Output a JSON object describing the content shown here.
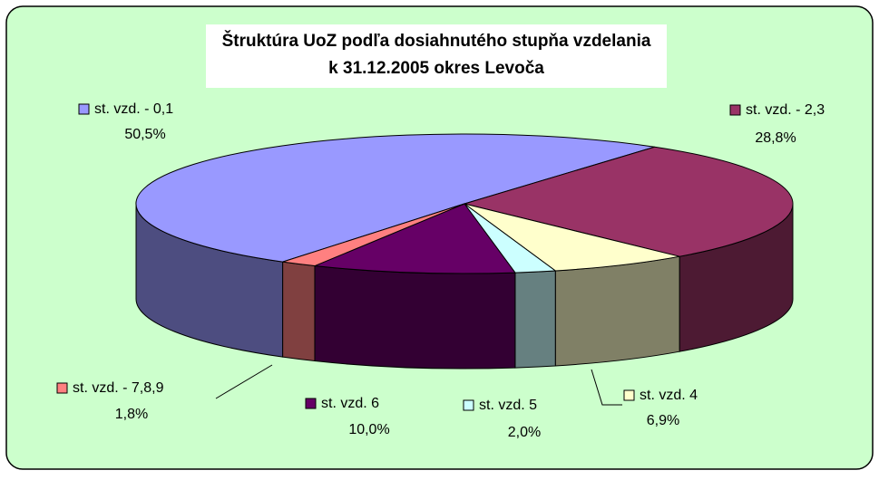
{
  "chart_data": {
    "type": "pie",
    "title": "Štruktúra UoZ  podľa dosiahnutého stupňa vzdelania",
    "subtitle": "k 31.12.2005 okres Levoča",
    "categories": [
      "st. vzd. - 0,1",
      "st. vzd. - 2,3",
      "st. vzd. 4",
      "st. vzd. 5",
      "st. vzd. 6",
      "st. vzd. - 7,8,9"
    ],
    "values": [
      50.5,
      28.8,
      6.9,
      2.0,
      10.0,
      1.8
    ],
    "value_labels": [
      "50,5%",
      "28,8%",
      "6,9%",
      "2,0%",
      "10,0%",
      "1,8%"
    ],
    "colors": [
      "#9999ff",
      "#993366",
      "#ffffcc",
      "#ccffff",
      "#660066",
      "#ff8080"
    ]
  }
}
